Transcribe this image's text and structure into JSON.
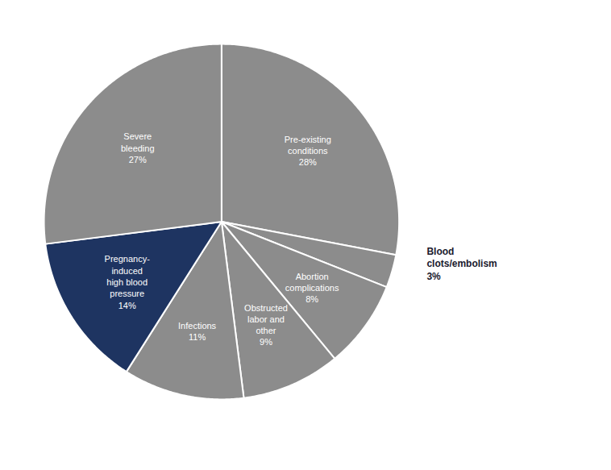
{
  "chart_data": {
    "type": "pie",
    "categories": [
      "Pre-existing\nconditions",
      "Blood\nclots/embolism",
      "Abortion\ncomplications",
      "Obstructed\nlabor and\nother",
      "Infections",
      "Pregnancy-\ninduced\nhigh blood\npressure",
      "Severe\nbleeding"
    ],
    "values": [
      28,
      3,
      8,
      9,
      11,
      14,
      27
    ],
    "value_labels": [
      "28%",
      "3%",
      "8%",
      "9%",
      "11%",
      "14%",
      "27%"
    ],
    "colors": [
      "#8c8c8c",
      "#8c8c8c",
      "#8c8c8c",
      "#8c8c8c",
      "#8c8c8c",
      "#1e3461",
      "#8c8c8c"
    ],
    "data_labels": true
  }
}
